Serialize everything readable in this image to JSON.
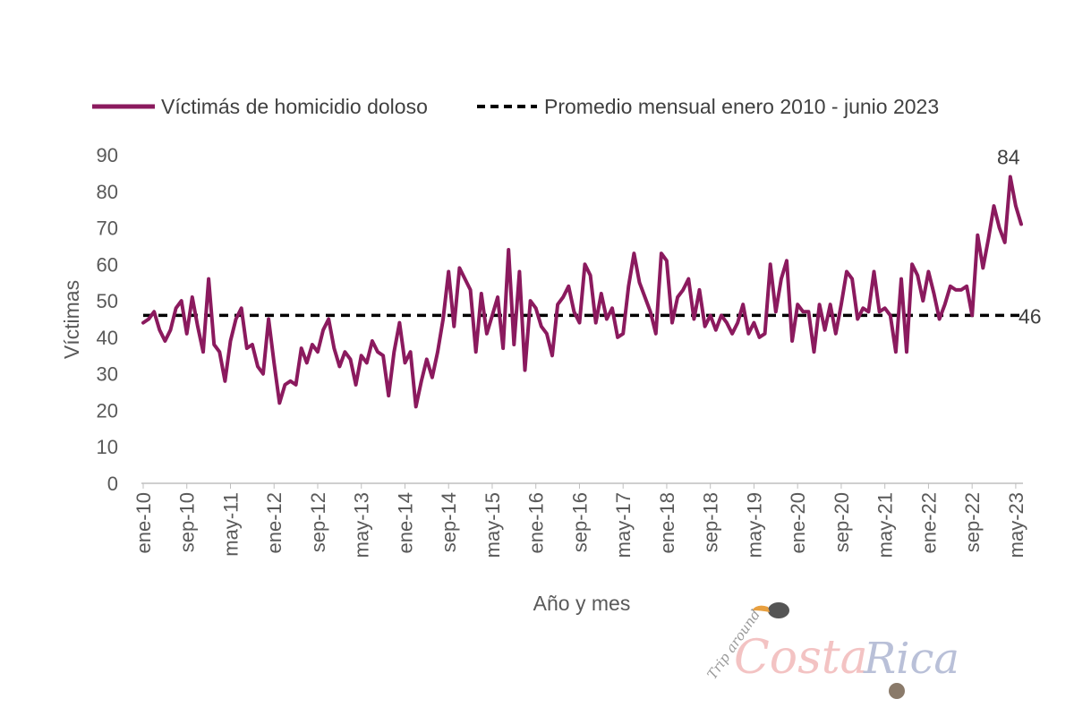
{
  "chart_data": {
    "type": "line",
    "title": "",
    "xlabel": "Año y mes",
    "ylabel": "Víctimas",
    "ylim": [
      0,
      90
    ],
    "yticks": [
      0,
      10,
      20,
      30,
      40,
      50,
      60,
      70,
      80,
      90
    ],
    "x_tick_labels": [
      "ene-10",
      "sep-10",
      "may-11",
      "ene-12",
      "sep-12",
      "may-13",
      "ene-14",
      "sep-14",
      "may-15",
      "ene-16",
      "sep-16",
      "may-17",
      "ene-18",
      "sep-18",
      "may-19",
      "ene-20",
      "sep-20",
      "may-21",
      "ene-22",
      "sep-22",
      "may-23"
    ],
    "x_tick_step_months": 8,
    "legend_position": "top",
    "series": [
      {
        "name": "Víctimás de homicidio doloso",
        "color": "#8B1A5E",
        "style": "solid",
        "values": [
          44,
          45,
          47,
          42,
          39,
          42,
          48,
          50,
          41,
          51,
          43,
          36,
          56,
          38,
          36,
          28,
          39,
          45,
          48,
          37,
          38,
          32,
          30,
          45,
          33,
          22,
          27,
          28,
          27,
          37,
          33,
          38,
          36,
          42,
          45,
          37,
          32,
          36,
          34,
          27,
          35,
          33,
          39,
          36,
          35,
          24,
          36,
          44,
          33,
          36,
          21,
          28,
          34,
          29,
          36,
          45,
          58,
          43,
          59,
          56,
          53,
          36,
          52,
          41,
          46,
          51,
          37,
          64,
          38,
          58,
          31,
          50,
          48,
          43,
          41,
          35,
          49,
          51,
          54,
          47,
          44,
          60,
          57,
          44,
          52,
          45,
          48,
          40,
          41,
          54,
          63,
          55,
          51,
          47,
          41,
          63,
          61,
          44,
          51,
          53,
          56,
          45,
          53,
          43,
          46,
          42,
          46,
          44,
          41,
          44,
          49,
          41,
          44,
          40,
          41,
          60,
          47,
          56,
          61,
          39,
          49,
          47,
          47,
          36,
          49,
          42,
          49,
          41,
          49,
          58,
          56,
          45,
          48,
          47,
          58,
          47,
          48,
          46,
          36,
          56,
          36,
          60,
          57,
          50,
          58,
          52,
          45,
          49,
          54,
          53,
          53,
          54,
          46,
          68,
          59,
          67,
          76,
          70,
          66,
          84,
          76,
          71
        ]
      },
      {
        "name": "Promedio mensual enero 2010 - junio 2023",
        "color": "#000000",
        "style": "dashed",
        "value": 46
      }
    ],
    "annotations": [
      {
        "text": "84",
        "value": 84,
        "target": "max"
      },
      {
        "text": "46",
        "value": 46,
        "target": "average"
      }
    ]
  },
  "colors": {
    "series_line": "#8B1A5E",
    "average_line": "#000000",
    "axis": "#BFBFBF",
    "text": "#595959"
  },
  "watermark": {
    "line1": "Trip around",
    "word1": "Costa",
    "word2": "Rica"
  }
}
